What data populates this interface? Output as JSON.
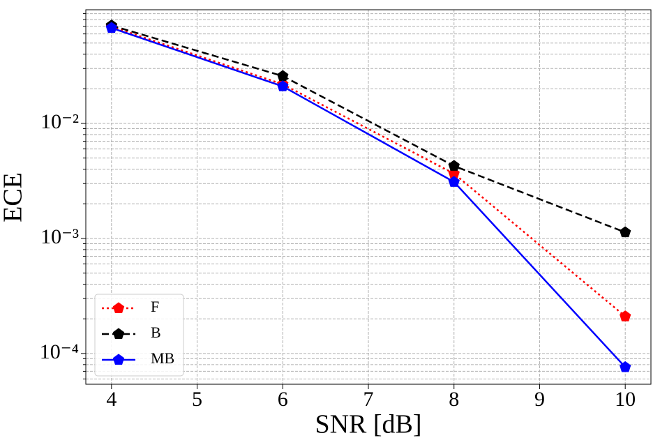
{
  "chart_data": {
    "type": "line",
    "xlabel": "SNR [dB]",
    "ylabel": "ECE",
    "x": [
      4,
      6,
      8,
      10
    ],
    "series": [
      {
        "name": "F",
        "color": "#ff0000",
        "linestyle": "dotted",
        "values": [
          0.0695,
          0.0219,
          0.00366,
          0.00021
        ]
      },
      {
        "name": "B",
        "color": "#000000",
        "linestyle": "dashed",
        "values": [
          0.071,
          0.0258,
          0.00427,
          0.00113
        ]
      },
      {
        "name": "MB",
        "color": "#0000ff",
        "linestyle": "solid",
        "values": [
          0.0676,
          0.021,
          0.0031,
          7.6e-05
        ]
      }
    ],
    "xlim": [
      3.7,
      10.3
    ],
    "xticks": [
      4,
      5,
      6,
      7,
      8,
      9,
      10
    ],
    "ylim": [
      5.4e-05,
      0.0973
    ],
    "yscale": "log",
    "yticks": [
      {
        "value": 0.0001,
        "label": "10⁻⁴"
      },
      {
        "value": 0.001,
        "label": "10⁻³"
      },
      {
        "value": 0.01,
        "label": "10⁻²"
      }
    ],
    "yminorticks": [
      6e-05,
      7e-05,
      8e-05,
      9e-05,
      0.0002,
      0.0003,
      0.0004,
      0.0005,
      0.0006,
      0.0007,
      0.0008,
      0.0009,
      0.002,
      0.003,
      0.004,
      0.005,
      0.006,
      0.007,
      0.008,
      0.009,
      0.02,
      0.03,
      0.04,
      0.05,
      0.06,
      0.07,
      0.08,
      0.09
    ],
    "grid": true,
    "legend": "lower left"
  }
}
